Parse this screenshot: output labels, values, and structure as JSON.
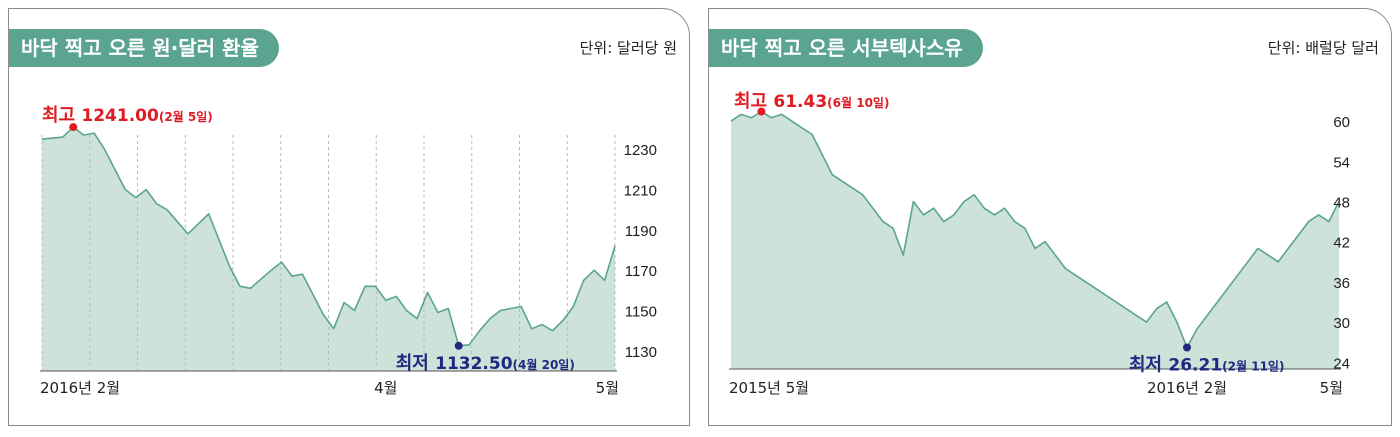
{
  "theme": {
    "tab_color": "#5aa491",
    "area_fill": "#cde3da",
    "line_color": "#5aa491",
    "max_color": "#e01b22",
    "min_color": "#1d2a80"
  },
  "panels": [
    {
      "title": "바닥 찍고 오른 원·달러 환율",
      "unit": "단위: 달러당 원",
      "max_label": "최고",
      "max_value": "1241.00",
      "max_date": "(2월 5일)",
      "min_label": "최저",
      "min_value": "1132.50",
      "min_date": "(4월 20일)"
    },
    {
      "title": "바닥 찍고 오른 서부텍사스유",
      "unit": "단위: 배럴당 달러",
      "max_label": "최고",
      "max_value": "61.43",
      "max_date": "(6월 10일)",
      "min_label": "최저",
      "min_value": "26.21",
      "min_date": "(2월 11일)"
    }
  ],
  "chart_data": [
    {
      "type": "area",
      "title": "바닥 찍고 오른 원·달러 환율",
      "unit": "단위: 달러당 원",
      "ylim": [
        1120,
        1245
      ],
      "yticks": [
        1130,
        1150,
        1170,
        1190,
        1210,
        1230
      ],
      "xlim": [
        0,
        55
      ],
      "xticks": [
        {
          "x": 0,
          "label": "2016년 2월"
        },
        {
          "x": 33,
          "label": "4월"
        },
        {
          "x": 54,
          "label": "5월"
        }
      ],
      "grid": "vertical-dashed",
      "series": [
        {
          "x": [
            0,
            2,
            3,
            4,
            5,
            6,
            8,
            9,
            10,
            11,
            12,
            14,
            16,
            18,
            19,
            20,
            22,
            23,
            24,
            25,
            27,
            28,
            29,
            30,
            31,
            32,
            33,
            34,
            35,
            36,
            37,
            38,
            39,
            40,
            41,
            42,
            43,
            44,
            45,
            46,
            47,
            48,
            49,
            50,
            51,
            52,
            53,
            54,
            55
          ],
          "y": [
            1235,
            1236,
            1241,
            1237,
            1238,
            1230,
            1210,
            1206,
            1210,
            1203,
            1200,
            1188,
            1198,
            1172,
            1162,
            1161,
            1170,
            1174,
            1167,
            1168,
            1148,
            1141,
            1154,
            1150,
            1162,
            1162,
            1155,
            1157,
            1150,
            1146,
            1159,
            1149,
            1151,
            1132.5,
            1133,
            1140,
            1146,
            1150,
            1151,
            1152,
            1141,
            1143,
            1140,
            1145,
            1152,
            1165,
            1170,
            1165,
            1182
          ]
        }
      ],
      "max_point": {
        "x": 3,
        "y": 1241.0,
        "label": "최고",
        "value": "1241.00",
        "date": "(2월 5일)"
      },
      "min_point": {
        "x": 40,
        "y": 1132.5,
        "label": "최저",
        "value": "1132.50",
        "date": "(4월 20일)"
      }
    },
    {
      "type": "area",
      "title": "바닥 찍고 오른 서부텍사스유",
      "unit": "단위: 배럴당 달러",
      "ylim": [
        23,
        63
      ],
      "yticks": [
        24,
        30,
        36,
        42,
        48,
        54,
        60
      ],
      "xlim": [
        0,
        12
      ],
      "xticks": [
        {
          "x": 0,
          "label": "2015년 5월"
        },
        {
          "x": 9,
          "label": "2016년 2월"
        },
        {
          "x": 12,
          "label": "5월"
        }
      ],
      "grid": "none",
      "series": [
        {
          "x": [
            0,
            0.2,
            0.4,
            0.6,
            0.8,
            1.0,
            1.2,
            1.4,
            1.6,
            1.8,
            2.0,
            2.2,
            2.4,
            2.6,
            2.8,
            3.0,
            3.2,
            3.4,
            3.6,
            3.8,
            4.0,
            4.2,
            4.4,
            4.6,
            4.8,
            5.0,
            5.2,
            5.4,
            5.6,
            5.8,
            6.0,
            6.2,
            6.4,
            6.6,
            6.8,
            7.0,
            7.2,
            7.4,
            7.6,
            7.8,
            8.0,
            8.2,
            8.4,
            8.6,
            8.8,
            9.0,
            9.2,
            9.3,
            9.4,
            9.6,
            9.8,
            10.0,
            10.2,
            10.4,
            10.6,
            10.8,
            11.0,
            11.2,
            11.4,
            11.6,
            11.8,
            12.0
          ],
          "y": [
            60,
            61,
            60.5,
            61.43,
            60.5,
            61,
            60,
            59,
            58,
            55,
            52,
            51,
            50,
            49,
            47,
            45,
            44,
            40,
            48,
            46,
            47,
            45,
            46,
            48,
            49,
            47,
            46,
            47,
            45,
            44,
            41,
            42,
            40,
            38,
            37,
            36,
            35,
            34,
            33,
            32,
            31,
            30,
            32,
            33,
            30,
            26.21,
            29,
            30,
            31,
            33,
            35,
            37,
            39,
            41,
            40,
            39,
            41,
            43,
            45,
            46,
            45,
            48
          ]
        }
      ],
      "max_point": {
        "x": 0.6,
        "y": 61.43,
        "label": "최고",
        "value": "61.43",
        "date": "(6월 10일)"
      },
      "min_point": {
        "x": 9.0,
        "y": 26.21,
        "label": "최저",
        "value": "26.21",
        "date": "(2월 11일)"
      }
    }
  ]
}
